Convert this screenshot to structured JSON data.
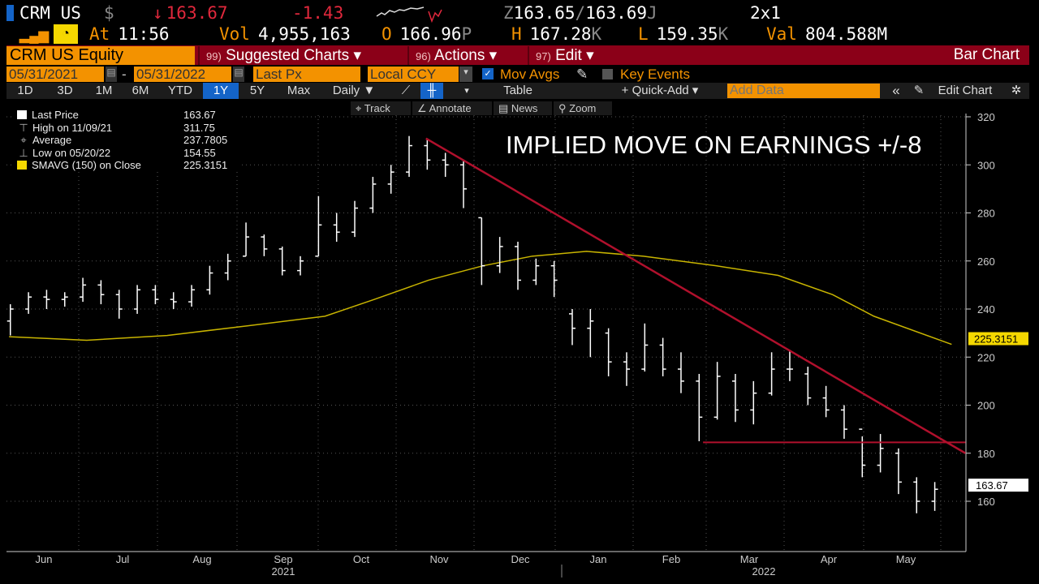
{
  "header": {
    "ticker": "CRM US",
    "currency": "$",
    "arrow": "↓",
    "last": "163.67",
    "change": "-1.43",
    "bidask_prefix": "Z",
    "bid": "163.65",
    "ask": "163.69",
    "ask_suffix": "J",
    "size": "2x1",
    "at_label": "At",
    "time": "11:56",
    "vol_label": "Vol",
    "volume": "4,955,163",
    "open_label": "O",
    "open": "166.96",
    "open_suffix": "P",
    "high_label": "H",
    "high": "167.28",
    "high_suffix": "K",
    "low_label": "L",
    "low": "159.35",
    "low_suffix": "K",
    "val_label": "Val",
    "value": "804.588M"
  },
  "menubar": {
    "security": "CRM US Equity",
    "suggested": {
      "num": "99)",
      "label": "Suggested Charts ▾"
    },
    "actions": {
      "num": "96)",
      "label": "Actions ▾"
    },
    "edit": {
      "num": "97)",
      "label": "Edit ▾"
    },
    "chart_type": "Bar Chart"
  },
  "params": {
    "start_date": "05/31/2021",
    "end_date": "05/31/2022",
    "dash": "-",
    "field": "Last Px",
    "currency": "Local CCY",
    "mov_avgs": "Mov Avgs",
    "mov_avgs_checked": true,
    "key_events": "Key Events"
  },
  "toolbar": {
    "periods": [
      "1D",
      "3D",
      "1M",
      "6M",
      "YTD",
      "1Y",
      "5Y",
      "Max"
    ],
    "selected": "1Y",
    "frequency": "Daily ▼",
    "table": "Table",
    "quick_add": "+ Quick-Add ▾",
    "add_data_placeholder": "Add Data",
    "collapse": "«",
    "edit_chart": "Edit Chart"
  },
  "subtools": {
    "track": "Track",
    "annotate": "Annotate",
    "news": "News",
    "zoom": "Zoom"
  },
  "legend": [
    {
      "label": "Last Price",
      "value": "163.67"
    },
    {
      "label": "High on 11/09/21",
      "value": "311.75"
    },
    {
      "label": "Average",
      "value": "237.7805"
    },
    {
      "label": "Low on 05/20/22",
      "value": "154.55"
    },
    {
      "label": "SMAVG (150)  on Close",
      "value": "225.3151"
    }
  ],
  "colors": {
    "accent": "#f39200",
    "menubar": "#8b0018",
    "price_bars": "#ffffff",
    "sma": "#c8b400",
    "trendline": "#b0102c",
    "selected": "#1464c8"
  },
  "chart_data": {
    "type": "bar",
    "subtype": "ohlc",
    "annotation": "IMPLIED MOVE ON EARNINGS +/-8",
    "ylim": [
      140,
      325
    ],
    "yticks": [
      160,
      180,
      200,
      220,
      240,
      260,
      280,
      300,
      320
    ],
    "xticks": [
      "Jun",
      "Jul",
      "Aug",
      "Sep",
      "Oct",
      "Nov",
      "Dec",
      "Jan",
      "Feb",
      "Mar",
      "Apr",
      "May"
    ],
    "years": [
      "2021",
      "2022"
    ],
    "last_label": "163.67",
    "sma_label": "225.3151",
    "ohlc_weekly": [
      [
        "06/04/21",
        235,
        242,
        229,
        240
      ],
      [
        "06/11/21",
        240,
        247,
        238,
        245
      ],
      [
        "06/18/21",
        245,
        248,
        240,
        244
      ],
      [
        "06/25/21",
        244,
        247,
        241,
        245
      ],
      [
        "07/02/21",
        245,
        253,
        243,
        250
      ],
      [
        "07/09/21",
        250,
        252,
        242,
        246
      ],
      [
        "07/16/21",
        246,
        248,
        236,
        240
      ],
      [
        "07/23/21",
        240,
        250,
        238,
        248
      ],
      [
        "07/30/21",
        248,
        250,
        242,
        244
      ],
      [
        "08/06/21",
        244,
        247,
        240,
        243
      ],
      [
        "08/13/21",
        243,
        250,
        241,
        248
      ],
      [
        "08/20/21",
        248,
        258,
        246,
        255
      ],
      [
        "08/27/21",
        255,
        263,
        252,
        260
      ],
      [
        "09/03/21",
        262,
        276,
        262,
        270
      ],
      [
        "09/10/21",
        270,
        271,
        262,
        265
      ],
      [
        "09/17/21",
        265,
        266,
        254,
        256
      ],
      [
        "09/24/21",
        256,
        262,
        254,
        260
      ],
      [
        "10/01/21",
        262,
        287,
        262,
        275
      ],
      [
        "10/08/21",
        275,
        280,
        268,
        272
      ],
      [
        "10/15/21",
        272,
        285,
        270,
        282
      ],
      [
        "10/22/21",
        282,
        295,
        280,
        292
      ],
      [
        "10/29/21",
        292,
        300,
        288,
        297
      ],
      [
        "11/05/21",
        297,
        312,
        295,
        308
      ],
      [
        "11/12/21",
        308,
        311,
        298,
        302
      ],
      [
        "11/19/21",
        302,
        305,
        295,
        300
      ],
      [
        "11/26/21",
        300,
        302,
        282,
        290
      ],
      [
        "12/03/21",
        278,
        278,
        250,
        258
      ],
      [
        "12/10/21",
        258,
        270,
        255,
        266
      ],
      [
        "12/17/21",
        266,
        268,
        248,
        252
      ],
      [
        "12/24/21",
        252,
        261,
        250,
        258
      ],
      [
        "12/31/21",
        258,
        260,
        245,
        252
      ],
      [
        "01/07/22",
        238,
        240,
        225,
        232
      ],
      [
        "01/14/22",
        232,
        240,
        220,
        235
      ],
      [
        "01/21/22",
        230,
        232,
        212,
        218
      ],
      [
        "01/28/22",
        218,
        222,
        208,
        215
      ],
      [
        "02/04/22",
        215,
        234,
        214,
        225
      ],
      [
        "02/11/22",
        225,
        228,
        212,
        215
      ],
      [
        "02/18/22",
        215,
        222,
        205,
        210
      ],
      [
        "02/25/22",
        210,
        213,
        185,
        195
      ],
      [
        "03/04/22",
        195,
        218,
        194,
        212
      ],
      [
        "03/11/22",
        210,
        213,
        193,
        198
      ],
      [
        "03/18/22",
        198,
        210,
        192,
        205
      ],
      [
        "03/25/22",
        205,
        222,
        204,
        215
      ],
      [
        "04/01/22",
        215,
        223,
        210,
        215
      ],
      [
        "04/08/22",
        213,
        216,
        200,
        203
      ],
      [
        "04/15/22",
        203,
        208,
        195,
        198
      ],
      [
        "04/22/22",
        198,
        200,
        186,
        190
      ],
      [
        "04/29/22",
        190,
        187,
        170,
        175
      ],
      [
        "05/06/22",
        175,
        188,
        172,
        182
      ],
      [
        "05/13/22",
        180,
        182,
        163,
        168
      ],
      [
        "05/20/22",
        168,
        170,
        155,
        160
      ],
      [
        "05/27/22",
        160,
        168,
        156,
        165
      ]
    ],
    "sma150": [
      [
        "06/01/21",
        228.5
      ],
      [
        "07/01/21",
        227
      ],
      [
        "08/01/21",
        229
      ],
      [
        "09/01/21",
        233
      ],
      [
        "10/01/21",
        237
      ],
      [
        "10/20/21",
        244
      ],
      [
        "11/10/21",
        252
      ],
      [
        "12/01/21",
        258
      ],
      [
        "12/20/21",
        262
      ],
      [
        "01/10/22",
        264
      ],
      [
        "02/01/22",
        262
      ],
      [
        "03/01/22",
        258
      ],
      [
        "03/25/22",
        254
      ],
      [
        "04/15/22",
        246
      ],
      [
        "05/01/22",
        237
      ],
      [
        "05/31/22",
        225.3
      ]
    ],
    "trendline": [
      [
        "11/09/21",
        311
      ],
      [
        "05/31/22",
        180
      ]
    ],
    "support_line": [
      [
        "02/24/22",
        184.5
      ],
      [
        "05/31/22",
        184.5
      ]
    ]
  }
}
